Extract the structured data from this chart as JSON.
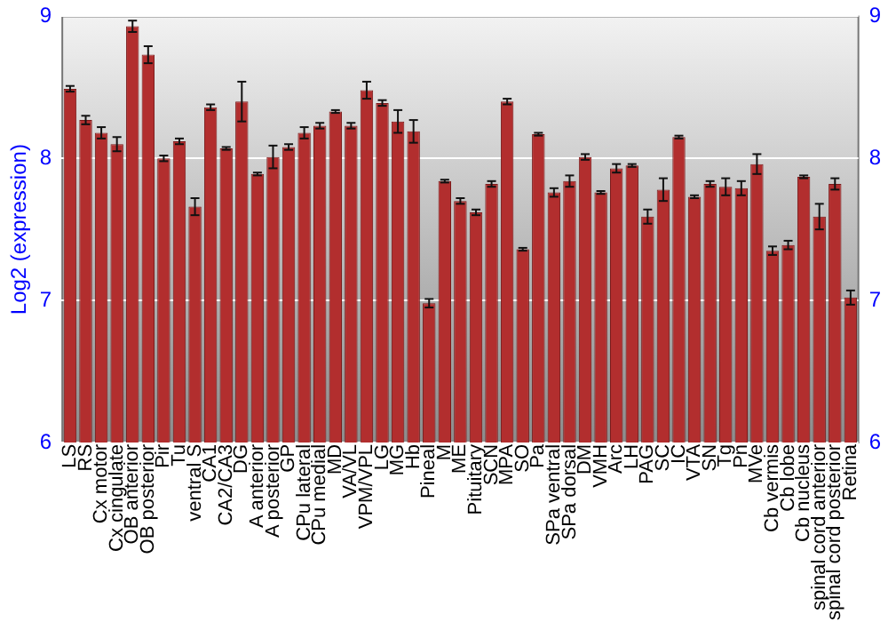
{
  "chart_data": {
    "type": "bar",
    "ylabel": "Log2 (expression)",
    "categories": [
      "LS",
      "RS",
      "Cx motor",
      "Cx cingulate",
      "OB anterior",
      "OB posterior",
      "Pir",
      "Tu",
      "ventral S",
      "CA1",
      "CA2/CA3",
      "DG",
      "A anterior",
      "A posterior",
      "GP",
      "CPu lateral",
      "CPu medial",
      "MD",
      "VA/VL",
      "VPM/VPL",
      "LG",
      "MG",
      "Hb",
      "Pineal",
      "M",
      "ME",
      "Pituitary",
      "SCN",
      "MPA",
      "SO",
      "Pa",
      "SPa ventral",
      "SPa dorsal",
      "DM",
      "VMH",
      "Arc",
      "LH",
      "PAG",
      "SC",
      "IC",
      "VTA",
      "SN",
      "Tg",
      "Pn",
      "MVe",
      "Cb vermis",
      "Cb lobe",
      "Cb nucleus",
      "spinal cord anterior",
      "spinal cord posterior",
      "Retina"
    ],
    "values": [
      8.49,
      8.27,
      8.18,
      8.1,
      8.93,
      8.73,
      8.0,
      8.12,
      7.66,
      8.36,
      8.07,
      8.4,
      7.89,
      8.01,
      8.08,
      8.18,
      8.23,
      8.33,
      8.23,
      8.48,
      8.39,
      8.26,
      8.19,
      6.98,
      7.84,
      7.7,
      7.62,
      7.82,
      8.4,
      7.36,
      8.17,
      7.76,
      7.84,
      8.01,
      7.76,
      7.93,
      7.95,
      7.59,
      7.78,
      8.15,
      7.73,
      7.82,
      7.8,
      7.79,
      7.96,
      7.35,
      7.39,
      7.87,
      7.59,
      7.82,
      7.02
    ],
    "errors": [
      0.02,
      0.03,
      0.04,
      0.05,
      0.04,
      0.06,
      0.02,
      0.02,
      0.06,
      0.02,
      0.01,
      0.14,
      0.01,
      0.08,
      0.02,
      0.04,
      0.02,
      0.01,
      0.02,
      0.06,
      0.02,
      0.08,
      0.08,
      0.03,
      0.01,
      0.02,
      0.02,
      0.02,
      0.02,
      0.01,
      0.01,
      0.03,
      0.04,
      0.02,
      0.01,
      0.03,
      0.01,
      0.05,
      0.08,
      0.01,
      0.01,
      0.02,
      0.06,
      0.05,
      0.07,
      0.03,
      0.03,
      0.01,
      0.09,
      0.04,
      0.05
    ],
    "color": "#b22e2e",
    "ylim": [
      6,
      9
    ],
    "yticks": [
      6,
      7,
      8,
      9
    ],
    "y2lim": [
      6,
      9
    ],
    "y2ticks": [
      6,
      7,
      8,
      9
    ],
    "grid": "y",
    "legend": false
  }
}
